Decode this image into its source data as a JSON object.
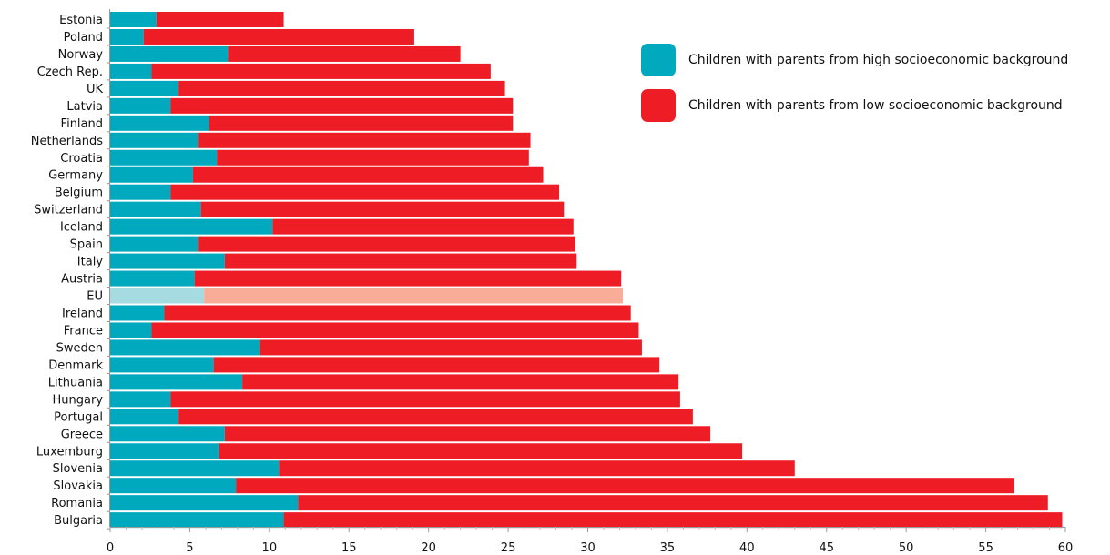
{
  "chart_data": {
    "type": "bar",
    "orientation": "horizontal",
    "stacked": true,
    "categories": [
      "Estonia",
      "Poland",
      "Norway",
      "Czech Rep.",
      "UK",
      "Latvia",
      "Finland",
      "Netherlands",
      "Croatia",
      "Germany",
      "Belgium",
      "Switzerland",
      "Iceland",
      "Spain",
      "Italy",
      "Austria",
      "EU",
      "Ireland",
      "France",
      "Sweden",
      "Denmark",
      "Lithuania",
      "Hungary",
      "Portugal",
      "Greece",
      "Luxemburg",
      "Slovenia",
      "Slovakia",
      "Romania",
      "Bulgaria"
    ],
    "series": [
      {
        "name": "Children with parents from high socioeconomic background",
        "color": "#00a9bd",
        "values": [
          2.9,
          2.1,
          7.4,
          2.6,
          4.3,
          3.8,
          6.2,
          5.5,
          6.7,
          5.2,
          3.8,
          5.7,
          10.2,
          5.5,
          7.2,
          5.3,
          5.9,
          3.4,
          2.6,
          9.4,
          6.5,
          8.3,
          3.8,
          4.3,
          7.2,
          6.8,
          10.6,
          7.9,
          11.8,
          10.9
        ]
      },
      {
        "name": "Children with parents from low socioeconomic background",
        "color": "#ee1c25",
        "values": [
          8.0,
          17.0,
          14.6,
          21.3,
          20.5,
          21.5,
          19.1,
          20.9,
          19.6,
          22.0,
          24.4,
          22.8,
          18.9,
          23.7,
          22.1,
          26.8,
          26.3,
          29.3,
          30.6,
          24.0,
          28.0,
          27.4,
          32.0,
          32.3,
          30.5,
          32.9,
          32.4,
          48.9,
          47.1,
          48.9
        ]
      }
    ],
    "highlight": {
      "category": "EU",
      "colors": [
        "#a6dbe2",
        "#f9ac97"
      ]
    },
    "xlim": [
      0,
      60
    ],
    "xticks": [
      0,
      5,
      10,
      15,
      20,
      25,
      30,
      35,
      40,
      45,
      50,
      55,
      60
    ],
    "title": "",
    "xlabel": "",
    "ylabel": "",
    "grid": false,
    "legend_position": "top-right"
  }
}
